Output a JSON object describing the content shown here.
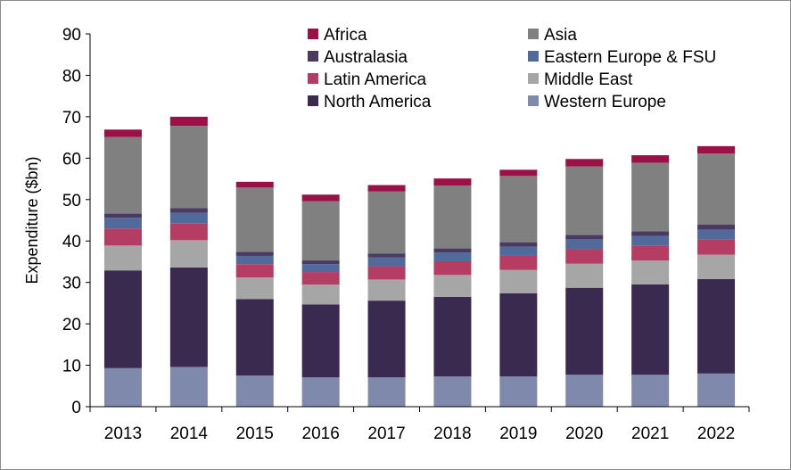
{
  "chart_data": {
    "type": "bar",
    "stacked": true,
    "title": "",
    "xlabel": "",
    "ylabel": "Expenditure ($bn)",
    "ylim": [
      0,
      90
    ],
    "yticks": [
      0,
      10,
      20,
      30,
      40,
      50,
      60,
      70,
      80,
      90
    ],
    "grid": false,
    "legend_position": "top",
    "categories": [
      "2013",
      "2014",
      "2015",
      "2016",
      "2017",
      "2018",
      "2019",
      "2020",
      "2021",
      "2022"
    ],
    "series": [
      {
        "name": "Western Europe",
        "color": "#7f89ab",
        "values": [
          9.3,
          9.6,
          7.5,
          7.1,
          7.1,
          7.3,
          7.3,
          7.7,
          7.7,
          8.0
        ]
      },
      {
        "name": "North America",
        "color": "#3b2a4f",
        "values": [
          23.6,
          24.0,
          18.5,
          17.6,
          18.5,
          19.2,
          20.1,
          21.0,
          21.8,
          22.8
        ]
      },
      {
        "name": "Middle East",
        "color": "#a6a6a6",
        "values": [
          6.0,
          6.6,
          5.2,
          4.8,
          5.1,
          5.3,
          5.6,
          5.8,
          5.8,
          5.9
        ]
      },
      {
        "name": "Latin America",
        "color": "#b53d63",
        "values": [
          4.1,
          4.0,
          3.2,
          3.0,
          3.2,
          3.3,
          3.4,
          3.6,
          3.6,
          3.7
        ]
      },
      {
        "name": "Eastern Europe & FSU",
        "color": "#4f6a9b",
        "values": [
          2.6,
          2.6,
          2.0,
          1.9,
          2.1,
          2.1,
          2.2,
          2.3,
          2.3,
          2.3
        ]
      },
      {
        "name": "Australasia",
        "color": "#4a3a62",
        "values": [
          1.0,
          1.1,
          1.0,
          0.9,
          1.0,
          1.0,
          1.1,
          1.1,
          1.1,
          1.3
        ]
      },
      {
        "name": "Asia",
        "color": "#808080",
        "values": [
          18.5,
          19.9,
          15.5,
          14.3,
          15.0,
          15.2,
          16.0,
          16.5,
          16.6,
          17.1
        ]
      },
      {
        "name": "Africa",
        "color": "#9c1048",
        "values": [
          1.8,
          2.2,
          1.4,
          1.6,
          1.5,
          1.7,
          1.5,
          1.8,
          1.8,
          1.8
        ]
      }
    ],
    "legend_order": [
      "Africa",
      "Asia",
      "Australasia",
      "Eastern Europe & FSU",
      "Latin America",
      "Middle East",
      "North America",
      "Western Europe"
    ]
  }
}
